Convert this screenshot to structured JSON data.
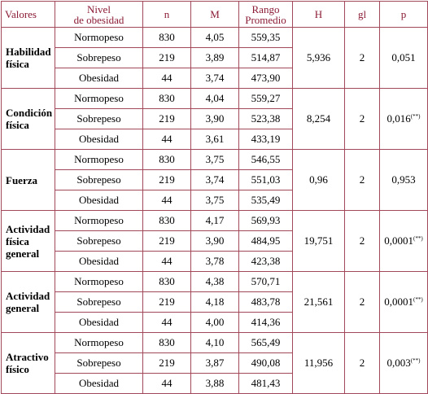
{
  "headers": {
    "valores": "Valores",
    "nivel_line1": "Nivel",
    "nivel_line2": "de obesidad",
    "n": "n",
    "m": "M",
    "rango_line1": "Rango",
    "rango_line2": "Promedio",
    "h": "H",
    "gl": "gl",
    "p": "p"
  },
  "groups": [
    {
      "name_line1": "Habilidad",
      "name_line2": "física",
      "name_line3": "",
      "h": "5,936",
      "gl": "2",
      "p": "0,051",
      "p_sup": "",
      "rows": [
        {
          "nivel": "Normopeso",
          "n": "830",
          "m": "4,05",
          "rango": "559,35"
        },
        {
          "nivel": "Sobrepeso",
          "n": "219",
          "m": "3,89",
          "rango": "514,87"
        },
        {
          "nivel": "Obesidad",
          "n": "44",
          "m": "3,74",
          "rango": "473,90"
        }
      ]
    },
    {
      "name_line1": "Condición",
      "name_line2": "física",
      "name_line3": "",
      "h": "8,254",
      "gl": "2",
      "p": "0,016",
      "p_sup": "(**)",
      "rows": [
        {
          "nivel": "Normopeso",
          "n": "830",
          "m": "4,04",
          "rango": "559,27"
        },
        {
          "nivel": "Sobrepeso",
          "n": "219",
          "m": "3,90",
          "rango": "523,38"
        },
        {
          "nivel": "Obesidad",
          "n": "44",
          "m": "3,61",
          "rango": "433,19"
        }
      ]
    },
    {
      "name_line1": "Fuerza",
      "name_line2": "",
      "name_line3": "",
      "h": "0,96",
      "gl": "2",
      "p": "0,953",
      "p_sup": "",
      "rows": [
        {
          "nivel": "Normopeso",
          "n": "830",
          "m": "3,75",
          "rango": "546,55"
        },
        {
          "nivel": "Sobrepeso",
          "n": "219",
          "m": "3,74",
          "rango": "551,03"
        },
        {
          "nivel": "Obesidad",
          "n": "44",
          "m": "3,75",
          "rango": "535,49"
        }
      ]
    },
    {
      "name_line1": "Actividad",
      "name_line2": "física",
      "name_line3": "general",
      "h": "19,751",
      "gl": "2",
      "p": "0,0001",
      "p_sup": "(**)",
      "rows": [
        {
          "nivel": "Normopeso",
          "n": "830",
          "m": "4,17",
          "rango": "569,93"
        },
        {
          "nivel": "Sobrepeso",
          "n": "219",
          "m": "3,90",
          "rango": "484,95"
        },
        {
          "nivel": "Obesidad",
          "n": "44",
          "m": "3,78",
          "rango": "423,38"
        }
      ]
    },
    {
      "name_line1": "Actividad",
      "name_line2": "general",
      "name_line3": "",
      "h": "21,561",
      "gl": "2",
      "p": "0,0001",
      "p_sup": "(**)",
      "rows": [
        {
          "nivel": "Normopeso",
          "n": "830",
          "m": "4,38",
          "rango": "570,71"
        },
        {
          "nivel": "Sobrepeso",
          "n": "219",
          "m": "4,18",
          "rango": "483,78"
        },
        {
          "nivel": "Obesidad",
          "n": "44",
          "m": "4,00",
          "rango": "414,36"
        }
      ]
    },
    {
      "name_line1": "Atractivo",
      "name_line2": "físico",
      "name_line3": "",
      "h": "11,956",
      "gl": "2",
      "p": "0,003",
      "p_sup": "(**)",
      "rows": [
        {
          "nivel": "Normopeso",
          "n": "830",
          "m": "4,10",
          "rango": "565,49"
        },
        {
          "nivel": "Sobrepeso",
          "n": "219",
          "m": "3,87",
          "rango": "490,08"
        },
        {
          "nivel": "Obesidad",
          "n": "44",
          "m": "3,88",
          "rango": "481,43"
        }
      ]
    }
  ]
}
